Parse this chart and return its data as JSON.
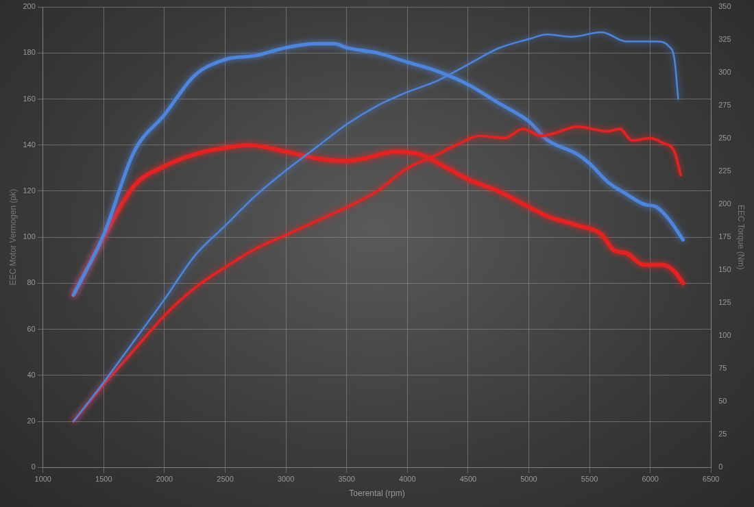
{
  "chart_data": {
    "type": "line",
    "xlabel": "Toerental (rpm)",
    "ylabel": "EEC Motor Vermogen (pk)",
    "y2label": "EEC Torque (Nm)",
    "xlim": [
      1000,
      6500
    ],
    "xticks": [
      1000,
      1500,
      2000,
      2500,
      3000,
      3500,
      4000,
      4500,
      5000,
      5500,
      6000,
      6500
    ],
    "ylim": [
      0,
      200
    ],
    "yticks": [
      0,
      20,
      40,
      60,
      80,
      100,
      120,
      140,
      160,
      180,
      200
    ],
    "y2lim": [
      0,
      350
    ],
    "y2ticks": [
      0,
      25,
      50,
      75,
      100,
      125,
      150,
      175,
      200,
      225,
      250,
      275,
      300,
      325,
      350
    ],
    "grid": true,
    "legend": false,
    "marker": "none",
    "line_style": "solid",
    "series": [
      {
        "color": "#4f86dc",
        "axis": "y",
        "x": [
          1250,
          1500,
          1750,
          2000,
          2250,
          2500,
          2750,
          3000,
          3250,
          3500,
          3750,
          4000,
          4250,
          4500,
          4750,
          5000,
          5150,
          5350,
          5600,
          5800,
          6050,
          6150,
          6200,
          6230
        ],
        "values": [
          20,
          37,
          55,
          73,
          92,
          105,
          118,
          129,
          139,
          149,
          157,
          163,
          168,
          175,
          182,
          186,
          188,
          187,
          189,
          185,
          185,
          183,
          177,
          160
        ]
      },
      {
        "color": "#e02424",
        "axis": "y",
        "x": [
          1250,
          1500,
          1750,
          2000,
          2250,
          2500,
          2750,
          3000,
          3250,
          3500,
          3750,
          4000,
          4250,
          4400,
          4600,
          4800,
          4950,
          5100,
          5200,
          5400,
          5650,
          5750,
          5850,
          6000,
          6100,
          6200,
          6250
        ],
        "values": [
          20,
          36,
          51,
          66,
          78,
          87,
          95,
          101,
          107,
          113,
          120,
          130,
          136,
          140,
          144,
          143,
          147,
          144,
          145,
          148,
          146,
          147,
          142,
          143,
          141,
          137,
          127
        ]
      },
      {
        "color": "#4f86dc",
        "axis": "y2",
        "x": [
          1250,
          1500,
          1750,
          2000,
          2250,
          2500,
          2750,
          3000,
          3250,
          3400,
          3500,
          3750,
          4000,
          4250,
          4500,
          4750,
          5000,
          5150,
          5400,
          5500,
          5650,
          5800,
          5950,
          6050,
          6150,
          6270
        ],
        "values": [
          131,
          177,
          240,
          268,
          298,
          310,
          313,
          319,
          322,
          322,
          319,
          315,
          308,
          301,
          291,
          277,
          263,
          249,
          238,
          231,
          217,
          208,
          200,
          198,
          189,
          173
        ]
      },
      {
        "color": "#e02424",
        "axis": "y2",
        "x": [
          1250,
          1500,
          1750,
          2000,
          2250,
          2500,
          2700,
          3000,
          3250,
          3500,
          3650,
          3900,
          4100,
          4300,
          4500,
          4750,
          5000,
          5150,
          5400,
          5600,
          5700,
          5800,
          5950,
          6100,
          6200,
          6270
        ],
        "values": [
          131,
          175,
          214,
          229,
          238,
          243,
          245,
          240,
          235,
          233,
          235,
          240,
          238,
          229,
          219,
          210,
          198,
          191,
          184,
          177,
          165,
          163,
          154,
          154,
          149,
          140
        ]
      }
    ]
  }
}
